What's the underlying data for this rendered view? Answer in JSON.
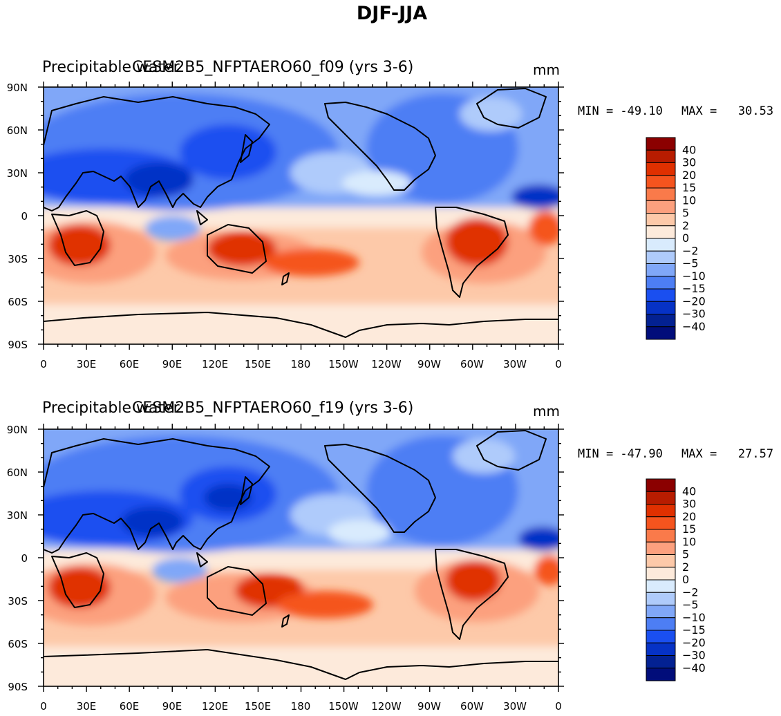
{
  "figure": {
    "title": "DJF-JJA"
  },
  "chart_data": [
    {
      "type": "heatmap",
      "title": "CESM2B5_NFPTAERO60_f09 (yrs 3-6)",
      "variable_label": "Precipitable water",
      "units": "mm",
      "min_label": "MIN = -49.10",
      "max_label": "MAX =   30.53",
      "x_ticks": [
        "0",
        "30E",
        "60E",
        "90E",
        "120E",
        "150E",
        "180",
        "150W",
        "120W",
        "90W",
        "60W",
        "30W",
        "0"
      ],
      "y_ticks": [
        "90N",
        "60N",
        "30N",
        "0",
        "30S",
        "60S",
        "90S"
      ],
      "xlim": [
        0,
        360
      ],
      "ylim": [
        -90,
        90
      ]
    },
    {
      "type": "heatmap",
      "title": "CESM2B5_NFPTAERO60_f19 (yrs 3-6)",
      "variable_label": "Precipitable water",
      "units": "mm",
      "min_label": "MIN = -47.90",
      "max_label": "MAX =   27.57",
      "x_ticks": [
        "0",
        "30E",
        "60E",
        "90E",
        "120E",
        "150E",
        "180",
        "150W",
        "120W",
        "90W",
        "60W",
        "30W",
        "0"
      ],
      "y_ticks": [
        "90N",
        "60N",
        "30N",
        "0",
        "30S",
        "60S",
        "90S"
      ],
      "xlim": [
        0,
        360
      ],
      "ylim": [
        -90,
        90
      ]
    }
  ],
  "colorbar": {
    "labels": [
      "40",
      "30",
      "20",
      "15",
      "10",
      "5",
      "2",
      "0",
      "-2",
      "-5",
      "-10",
      "-15",
      "-20",
      "-30",
      "-40"
    ],
    "colors": [
      "#8b0000",
      "#b81c00",
      "#e03000",
      "#f5541e",
      "#fa7a4a",
      "#fca07e",
      "#fdc9a9",
      "#fdeadb",
      "#d9ebfd",
      "#afcbfb",
      "#80a7f8",
      "#4d7ef4",
      "#1a4ff0",
      "#0632c6",
      "#032192",
      "#010d7a"
    ]
  }
}
